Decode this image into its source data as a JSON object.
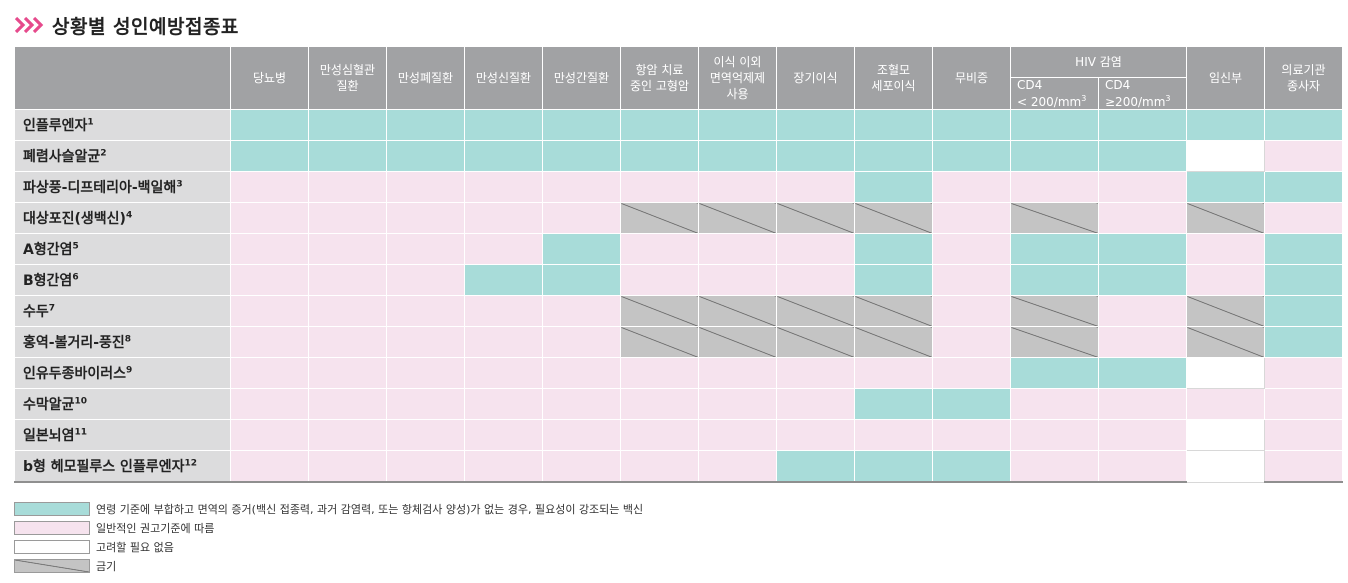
{
  "title": "상황별 성인예방접종표",
  "colors": {
    "teal": "#a8dcd9",
    "pink": "#f6e3ee",
    "white": "#ffffff",
    "gray": "#c4c4c4",
    "header": "#a1a2a4",
    "label_bg": "#dcdcdd",
    "chevron": "#e64a8c"
  },
  "header": {
    "columns": [
      "당뇨병",
      "만성심혈관\n질환",
      "만성폐질환",
      "만성신질환",
      "만성간질환",
      "항암 치료\n중인 고형암",
      "이식 이외\n면역억제제\n사용",
      "장기이식",
      "조혈모\n세포이식",
      "무비증"
    ],
    "hiv_group": "HIV 감염",
    "hiv_sub": [
      {
        "line1": "CD4",
        "line2": "< 200/mm",
        "sup": "3"
      },
      {
        "line1": "CD4",
        "line2": "≥200/mm",
        "sup": "3"
      }
    ],
    "columns_after": [
      "임신부",
      "의료기관\n종사자"
    ]
  },
  "rows": [
    {
      "name": "인플루엔자",
      "sup": "1",
      "cells": [
        "teal",
        "teal",
        "teal",
        "teal",
        "teal",
        "teal",
        "teal",
        "teal",
        "teal",
        "teal",
        "teal",
        "teal",
        "teal",
        "teal"
      ]
    },
    {
      "name": "폐렴사슬알균",
      "sup": "2",
      "cells": [
        "teal",
        "teal",
        "teal",
        "teal",
        "teal",
        "teal",
        "teal",
        "teal",
        "teal",
        "teal",
        "teal",
        "teal",
        "white",
        "pink"
      ]
    },
    {
      "name": "파상풍-디프테리아-백일해",
      "sup": "3",
      "cells": [
        "pink",
        "pink",
        "pink",
        "pink",
        "pink",
        "pink",
        "pink",
        "pink",
        "teal",
        "pink",
        "pink",
        "pink",
        "teal",
        "teal"
      ]
    },
    {
      "name": "대상포진(생백신)",
      "sup": "4",
      "cells": [
        "pink",
        "pink",
        "pink",
        "pink",
        "pink",
        "gray",
        "gray",
        "gray",
        "gray",
        "pink",
        "gray",
        "pink",
        "gray",
        "pink"
      ]
    },
    {
      "name": "A형간염",
      "sup": "5",
      "cells": [
        "pink",
        "pink",
        "pink",
        "pink",
        "teal",
        "pink",
        "pink",
        "pink",
        "teal",
        "pink",
        "teal",
        "teal",
        "pink",
        "teal"
      ]
    },
    {
      "name": "B형간염",
      "sup": "6",
      "cells": [
        "pink",
        "pink",
        "pink",
        "teal",
        "teal",
        "pink",
        "pink",
        "pink",
        "teal",
        "pink",
        "teal",
        "teal",
        "pink",
        "teal"
      ]
    },
    {
      "name": "수두",
      "sup": "7",
      "cells": [
        "pink",
        "pink",
        "pink",
        "pink",
        "pink",
        "gray",
        "gray",
        "gray",
        "gray",
        "pink",
        "gray",
        "pink",
        "gray",
        "teal"
      ]
    },
    {
      "name": "홍역-볼거리-풍진",
      "sup": "8",
      "cells": [
        "pink",
        "pink",
        "pink",
        "pink",
        "pink",
        "gray",
        "gray",
        "gray",
        "gray",
        "pink",
        "gray",
        "pink",
        "gray",
        "teal"
      ]
    },
    {
      "name": "인유두종바이러스",
      "sup": "9",
      "cells": [
        "pink",
        "pink",
        "pink",
        "pink",
        "pink",
        "pink",
        "pink",
        "pink",
        "pink",
        "pink",
        "teal",
        "teal",
        "white",
        "pink"
      ]
    },
    {
      "name": "수막알균",
      "sup": "10",
      "cells": [
        "pink",
        "pink",
        "pink",
        "pink",
        "pink",
        "pink",
        "pink",
        "pink",
        "teal",
        "teal",
        "pink",
        "pink",
        "pink",
        "pink"
      ]
    },
    {
      "name": "일본뇌염",
      "sup": "11",
      "cells": [
        "pink",
        "pink",
        "pink",
        "pink",
        "pink",
        "pink",
        "pink",
        "pink",
        "pink",
        "pink",
        "pink",
        "pink",
        "white",
        "pink"
      ]
    },
    {
      "name": "b형 헤모필루스 인플루엔자",
      "sup": "12",
      "cells": [
        "pink",
        "pink",
        "pink",
        "pink",
        "pink",
        "pink",
        "pink",
        "teal",
        "teal",
        "teal",
        "pink",
        "pink",
        "white",
        "pink"
      ]
    }
  ],
  "legend": [
    {
      "type": "teal",
      "text": "연령 기준에 부합하고 면역의 증거(백신 접종력, 과거 감염력, 또는 항체검사 양성)가 없는 경우, 필요성이 강조되는 백신"
    },
    {
      "type": "pink",
      "text": "일반적인 권고기준에 따름"
    },
    {
      "type": "white",
      "text": "고려할 필요 없음"
    },
    {
      "type": "gray",
      "text": "금기"
    }
  ]
}
